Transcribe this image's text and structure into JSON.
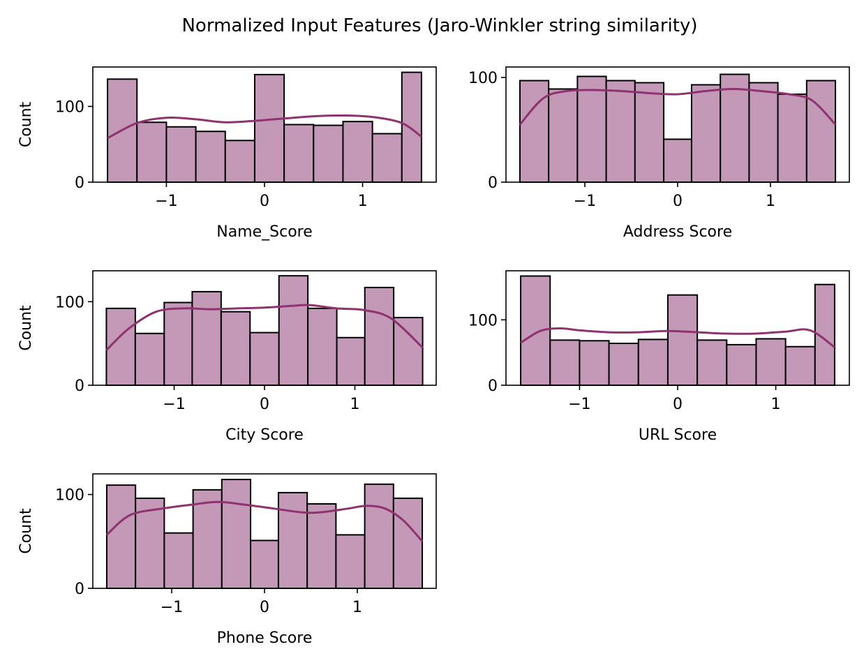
{
  "title": "Normalized Input Features (Jaro-Winkler string similarity)",
  "colors": {
    "bar_fill": "#c498b7",
    "bar_edge": "#000000",
    "kde_line": "#8e3270"
  },
  "chart_data": [
    {
      "type": "bar",
      "xlabel": "Name_Score",
      "ylabel": "Count",
      "xlim": [
        -1.75,
        1.75
      ],
      "ylim": [
        0,
        152
      ],
      "xticks": [
        -1,
        0,
        1
      ],
      "xtick_labels": [
        "−1",
        "0",
        "1"
      ],
      "yticks": [
        0,
        100
      ],
      "ytick_labels": [
        "0",
        "100"
      ],
      "bin_edges": [
        -1.6,
        -1.3,
        -1.0,
        -0.7,
        -0.4,
        -0.1,
        0.2,
        0.5,
        0.8,
        1.1,
        1.4,
        1.6
      ],
      "values": [
        136,
        79,
        73,
        67,
        55,
        142,
        76,
        75,
        80,
        64,
        145
      ],
      "kde": [
        [
          -1.6,
          58
        ],
        [
          -1.3,
          78
        ],
        [
          -1.0,
          85
        ],
        [
          -0.7,
          83
        ],
        [
          -0.4,
          79
        ],
        [
          -0.1,
          81
        ],
        [
          0.2,
          84
        ],
        [
          0.5,
          87
        ],
        [
          0.8,
          88
        ],
        [
          1.1,
          86
        ],
        [
          1.4,
          78
        ],
        [
          1.6,
          60
        ]
      ]
    },
    {
      "type": "bar",
      "xlabel": "Address Score",
      "ylabel": "",
      "xlim": [
        -1.85,
        1.85
      ],
      "ylim": [
        0,
        110
      ],
      "xticks": [
        -1,
        0,
        1
      ],
      "xtick_labels": [
        "−1",
        "0",
        "1"
      ],
      "yticks": [
        0,
        100
      ],
      "ytick_labels": [
        "0",
        "100"
      ],
      "bin_edges": [
        -1.7,
        -1.39,
        -1.08,
        -0.77,
        -0.46,
        -0.15,
        0.15,
        0.46,
        0.77,
        1.08,
        1.39,
        1.7
      ],
      "values": [
        97,
        89,
        101,
        97,
        95,
        41,
        93,
        103,
        95,
        84,
        97
      ],
      "kde": [
        [
          -1.7,
          55
        ],
        [
          -1.45,
          80
        ],
        [
          -1.2,
          87
        ],
        [
          -0.9,
          88
        ],
        [
          -0.6,
          87
        ],
        [
          -0.3,
          85
        ],
        [
          0,
          84
        ],
        [
          0.3,
          87
        ],
        [
          0.6,
          89
        ],
        [
          0.9,
          87
        ],
        [
          1.2,
          84
        ],
        [
          1.45,
          78
        ],
        [
          1.7,
          55
        ]
      ]
    },
    {
      "type": "bar",
      "xlabel": "City Score",
      "ylabel": "Count",
      "xlim": [
        -1.9,
        1.9
      ],
      "ylim": [
        0,
        137
      ],
      "xticks": [
        -1,
        0,
        1
      ],
      "xtick_labels": [
        "−1",
        "0",
        "1"
      ],
      "yticks": [
        0,
        100
      ],
      "ytick_labels": [
        "0",
        "100"
      ],
      "bin_edges": [
        -1.75,
        -1.43,
        -1.11,
        -0.8,
        -0.48,
        -0.16,
        0.16,
        0.48,
        0.8,
        1.11,
        1.43,
        1.75
      ],
      "values": [
        92,
        62,
        99,
        112,
        88,
        63,
        131,
        92,
        57,
        117,
        81
      ],
      "kde": [
        [
          -1.75,
          42
        ],
        [
          -1.5,
          68
        ],
        [
          -1.2,
          88
        ],
        [
          -0.9,
          92
        ],
        [
          -0.6,
          91
        ],
        [
          -0.3,
          92
        ],
        [
          0,
          93
        ],
        [
          0.3,
          95
        ],
        [
          0.5,
          96
        ],
        [
          0.8,
          92
        ],
        [
          1.1,
          90
        ],
        [
          1.4,
          80
        ],
        [
          1.75,
          45
        ]
      ]
    },
    {
      "type": "bar",
      "xlabel": "URL Score",
      "ylabel": "",
      "xlim": [
        -1.75,
        1.75
      ],
      "ylim": [
        0,
        175
      ],
      "xticks": [
        -1,
        0,
        1
      ],
      "xtick_labels": [
        "−1",
        "0",
        "1"
      ],
      "yticks": [
        0,
        100
      ],
      "ytick_labels": [
        "0",
        "100"
      ],
      "bin_edges": [
        -1.6,
        -1.3,
        -1.0,
        -0.7,
        -0.4,
        -0.1,
        0.2,
        0.5,
        0.8,
        1.1,
        1.4,
        1.6
      ],
      "values": [
        167,
        69,
        68,
        64,
        70,
        138,
        69,
        62,
        71,
        59,
        154
      ],
      "kde": [
        [
          -1.6,
          65
        ],
        [
          -1.4,
          83
        ],
        [
          -1.2,
          87
        ],
        [
          -1.0,
          84
        ],
        [
          -0.7,
          81
        ],
        [
          -0.4,
          81
        ],
        [
          -0.1,
          83
        ],
        [
          0.2,
          81
        ],
        [
          0.5,
          79
        ],
        [
          0.8,
          79
        ],
        [
          1.1,
          82
        ],
        [
          1.35,
          84
        ],
        [
          1.6,
          58
        ]
      ]
    },
    {
      "type": "bar",
      "xlabel": "Phone Score",
      "ylabel": "Count",
      "xlim": [
        -1.85,
        1.85
      ],
      "ylim": [
        0,
        122
      ],
      "xticks": [
        -1,
        0,
        1
      ],
      "xtick_labels": [
        "−1",
        "0",
        "1"
      ],
      "yticks": [
        0,
        100
      ],
      "ytick_labels": [
        "0",
        "100"
      ],
      "bin_edges": [
        -1.7,
        -1.39,
        -1.08,
        -0.77,
        -0.46,
        -0.15,
        0.15,
        0.46,
        0.77,
        1.08,
        1.39,
        1.7
      ],
      "values": [
        110,
        96,
        59,
        105,
        116,
        51,
        102,
        90,
        57,
        111,
        96
      ],
      "kde": [
        [
          -1.7,
          57
        ],
        [
          -1.45,
          78
        ],
        [
          -1.1,
          85
        ],
        [
          -0.8,
          89
        ],
        [
          -0.5,
          92
        ],
        [
          -0.2,
          89
        ],
        [
          0.1,
          85
        ],
        [
          0.4,
          81
        ],
        [
          0.6,
          81
        ],
        [
          0.9,
          85
        ],
        [
          1.1,
          88
        ],
        [
          1.3,
          85
        ],
        [
          1.5,
          72
        ],
        [
          1.7,
          50
        ]
      ]
    }
  ]
}
